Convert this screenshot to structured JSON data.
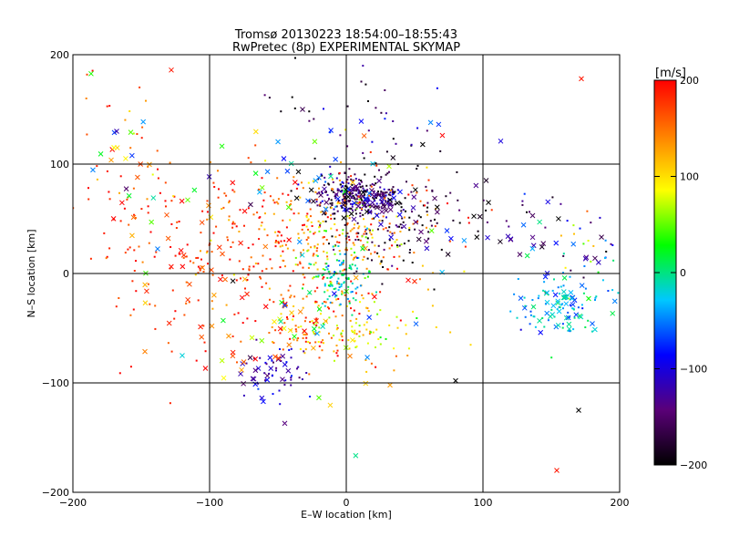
{
  "chart_data": {
    "type": "scatter",
    "title": "Tromsø 20130223 18:54:00–18:55:43",
    "subtitle": "RwPretec (8p) EXPERIMENTAL SKYMAP",
    "xlabel": "E–W location [km]",
    "ylabel": "N–S location [km]",
    "xlim": [
      -200,
      200
    ],
    "ylim": [
      -200,
      200
    ],
    "x_ticks": [
      -200,
      -100,
      0,
      100,
      200
    ],
    "y_ticks": [
      -200,
      -100,
      0,
      100,
      200
    ],
    "x_tick_labels": [
      "−200",
      "−100",
      "0",
      "100",
      "200"
    ],
    "y_tick_labels": [
      "−200",
      "−100",
      "0",
      "100",
      "200"
    ],
    "grid": true,
    "colorbar": {
      "label": "[m/s]",
      "range": [
        -200,
        200
      ],
      "ticks": [
        200,
        100,
        0,
        -100,
        -200
      ],
      "tick_labels": [
        "200",
        "100",
        "0",
        "−100",
        "−200"
      ],
      "colormap": [
        "#000000",
        "#5a0078",
        "#0000ff",
        "#00c8ff",
        "#00ff00",
        "#ffff00",
        "#ff8000",
        "#ff0000"
      ]
    },
    "series": [
      {
        "marker": "dot",
        "clusters": [
          {
            "x": 8,
            "y": 72,
            "sx": 15,
            "sy": 8,
            "v": -150,
            "sv": 35,
            "n": 220
          },
          {
            "x": 25,
            "y": 55,
            "sx": 25,
            "sy": 25,
            "v": -180,
            "sv": 25,
            "n": 120
          },
          {
            "x": -20,
            "y": 40,
            "sx": 50,
            "sy": 35,
            "v": 150,
            "sv": 40,
            "n": 230
          },
          {
            "x": -70,
            "y": 30,
            "sx": 40,
            "sy": 30,
            "v": 180,
            "sv": 30,
            "n": 90
          },
          {
            "x": 0,
            "y": 40,
            "sx": 20,
            "sy": 20,
            "v": 100,
            "sv": 60,
            "n": 100
          },
          {
            "x": -5,
            "y": -5,
            "sx": 10,
            "sy": 12,
            "v": -10,
            "sv": 25,
            "n": 110
          },
          {
            "x": -20,
            "y": -45,
            "sx": 25,
            "sy": 20,
            "v": 150,
            "sv": 40,
            "n": 110
          },
          {
            "x": 15,
            "y": -55,
            "sx": 25,
            "sy": 15,
            "v": 90,
            "sv": 30,
            "n": 70
          },
          {
            "x": -50,
            "y": -85,
            "sx": 12,
            "sy": 12,
            "v": -110,
            "sv": 25,
            "n": 40
          },
          {
            "x": 155,
            "y": -30,
            "sx": 18,
            "sy": 15,
            "v": -30,
            "sv": 30,
            "n": 70
          },
          {
            "x": -120,
            "y": 0,
            "sx": 50,
            "sy": 50,
            "v": 175,
            "sv": 25,
            "n": 90
          },
          {
            "x": -160,
            "y": 100,
            "sx": 25,
            "sy": 40,
            "v": 160,
            "sv": 40,
            "n": 40
          },
          {
            "x": 0,
            "y": 140,
            "sx": 30,
            "sy": 30,
            "v": -150,
            "sv": 60,
            "n": 40
          },
          {
            "x": 100,
            "y": 40,
            "sx": 60,
            "sy": 25,
            "v": -170,
            "sv": 40,
            "n": 40
          },
          {
            "x": 175,
            "y": 20,
            "sx": 15,
            "sy": 20,
            "v": 0,
            "sv": 80,
            "n": 25
          }
        ]
      },
      {
        "marker": "x",
        "clusters": [
          {
            "x": 10,
            "y": 68,
            "sx": 18,
            "sy": 8,
            "v": -150,
            "sv": 40,
            "n": 60
          },
          {
            "x": 160,
            "y": -30,
            "sx": 15,
            "sy": 12,
            "v": -30,
            "sv": 30,
            "n": 45
          },
          {
            "x": 150,
            "y": 30,
            "sx": 25,
            "sy": 15,
            "v": -120,
            "sv": 60,
            "n": 25
          },
          {
            "x": -55,
            "y": -90,
            "sx": 12,
            "sy": 12,
            "v": -110,
            "sv": 30,
            "n": 20
          },
          {
            "x": -110,
            "y": 0,
            "sx": 25,
            "sy": 40,
            "v": 170,
            "sv": 30,
            "n": 35
          },
          {
            "x": -160,
            "y": 70,
            "sx": 25,
            "sy": 45,
            "v": 60,
            "sv": 80,
            "n": 25
          },
          {
            "x": -35,
            "y": -50,
            "sx": 25,
            "sy": 20,
            "v": 100,
            "sv": 90,
            "n": 30
          },
          {
            "x": -30,
            "y": 100,
            "sx": 40,
            "sy": 20,
            "v": -50,
            "sv": 130,
            "n": 30
          },
          {
            "x": 75,
            "y": 50,
            "sx": 25,
            "sy": 15,
            "v": -130,
            "sv": 50,
            "n": 25
          },
          {
            "x": 0,
            "y": 0,
            "sx": 60,
            "sy": 70,
            "v": 50,
            "sv": 120,
            "n": 40
          }
        ],
        "extra_points": [
          {
            "x": -128,
            "y": 186,
            "v": 190
          },
          {
            "x": 172,
            "y": 178,
            "v": 190
          },
          {
            "x": 113,
            "y": 121,
            "v": -100
          },
          {
            "x": 170,
            "y": -125,
            "v": -200
          },
          {
            "x": 154,
            "y": -180,
            "v": 190
          },
          {
            "x": 80,
            "y": -98,
            "v": -200
          },
          {
            "x": -45,
            "y": -137,
            "v": -140
          },
          {
            "x": -32,
            "y": 150,
            "v": -160
          },
          {
            "x": -168,
            "y": 130,
            "v": -120
          },
          {
            "x": -120,
            "y": -75,
            "v": -20
          }
        ]
      }
    ]
  }
}
